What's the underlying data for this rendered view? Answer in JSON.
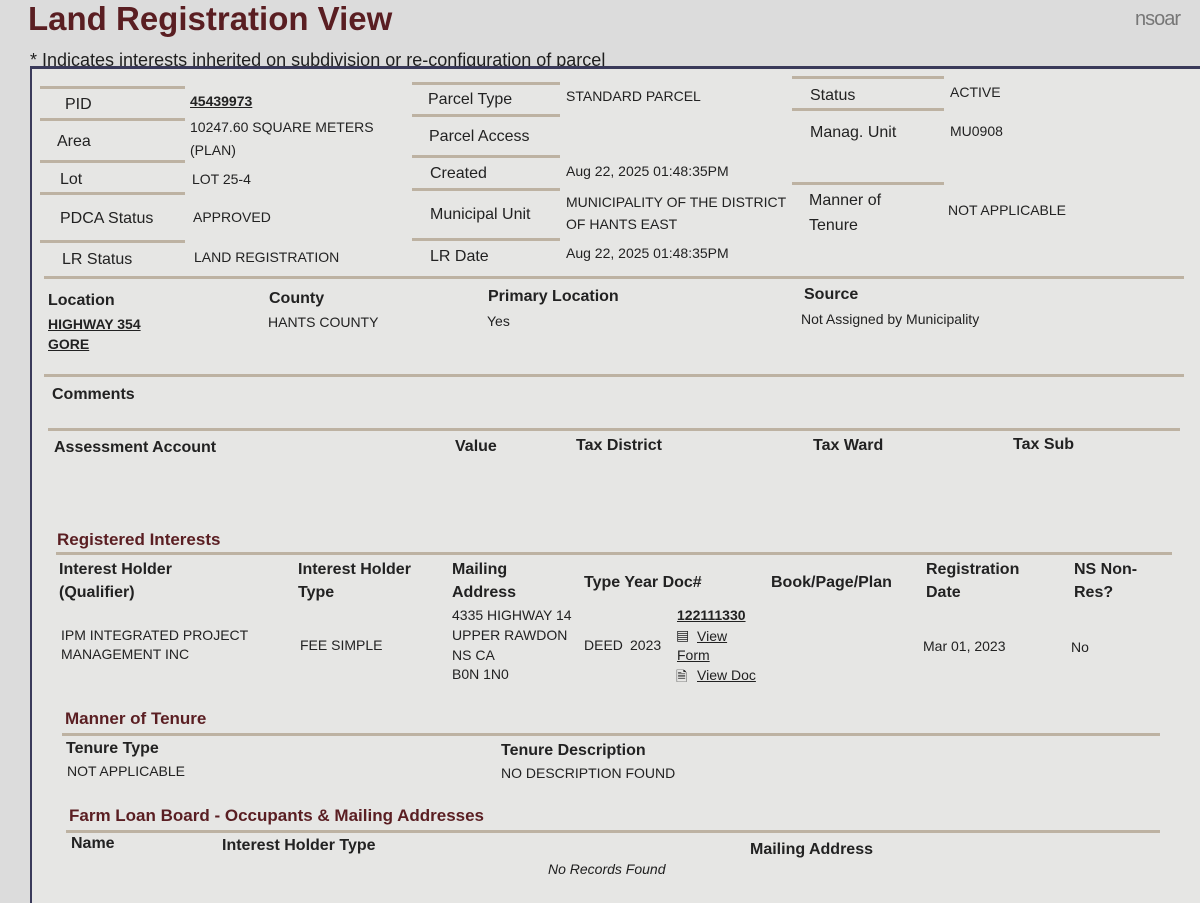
{
  "header": {
    "title": "Land Registration View",
    "note": "* Indicates interests inherited on subdivision or re-configuration of parcel",
    "logo": "nsoar"
  },
  "parcel": {
    "pid_label": "PID",
    "pid": "45439973",
    "area_label": "Area",
    "area": "10247.60 SQUARE METERS",
    "area_sub": "(PLAN)",
    "lot_label": "Lot",
    "lot": "LOT 25-4",
    "pdca_label": "PDCA Status",
    "pdca": "APPROVED",
    "lr_status_label": "LR Status",
    "lr_status": "LAND REGISTRATION",
    "type_label": "Parcel Type",
    "type": "STANDARD PARCEL",
    "access_label": "Parcel Access",
    "created_label": "Created",
    "created": "Aug 22, 2025 01:48:35PM",
    "muni_label": "Municipal Unit",
    "muni_1": "MUNICIPALITY OF THE DISTRICT",
    "muni_2": "OF HANTS EAST",
    "lr_date_label": "LR Date",
    "lr_date": "Aug 22, 2025 01:48:35PM",
    "status_label": "Status",
    "status": "ACTIVE",
    "manag_label": "Manag. Unit",
    "manag": "MU0908",
    "tenure_label_1": "Manner of",
    "tenure_label_2": "Tenure",
    "tenure": "NOT APPLICABLE"
  },
  "location": {
    "location_label": "Location",
    "location_1": "HIGHWAY 354",
    "location_2": "GORE",
    "county_label": "County",
    "county": "HANTS COUNTY",
    "primary_label": "Primary Location",
    "primary": "Yes",
    "source_label": "Source",
    "source": "Not Assigned by Municipality"
  },
  "comments_label": "Comments",
  "assessment": {
    "cols": [
      "Assessment Account",
      "Value",
      "Tax District",
      "Tax Ward",
      "Tax Sub"
    ]
  },
  "interests": {
    "title": "Registered Interests",
    "cols": {
      "holder_1": "Interest Holder",
      "holder_2": "(Qualifier)",
      "type_1": "Interest Holder",
      "type_2": "Type",
      "mail_1": "Mailing",
      "mail_2": "Address",
      "tyd": "Type Year Doc#",
      "bpp": "Book/Page/Plan",
      "reg_1": "Registration",
      "reg_2": "Date",
      "ns_1": "NS Non-",
      "ns_2": "Res?"
    },
    "row": {
      "holder_1": "IPM INTEGRATED PROJECT",
      "holder_2": "MANAGEMENT INC",
      "type": "FEE SIMPLE",
      "addr": [
        "4335 HIGHWAY 14",
        "UPPER RAWDON",
        "NS CA",
        "B0N 1N0"
      ],
      "doc_type": "DEED",
      "year": "2023",
      "doc": "122111330",
      "view_form_1": "View",
      "view_form_2": "Form",
      "view_doc": "View Doc",
      "reg_date": "Mar 01, 2023",
      "ns": "No"
    }
  },
  "manner": {
    "title": "Manner of Tenure",
    "type_label": "Tenure Type",
    "type": "NOT APPLICABLE",
    "desc_label": "Tenure Description",
    "desc": "NO DESCRIPTION FOUND"
  },
  "farm": {
    "title": "Farm Loan Board - Occupants & Mailing Addresses",
    "name": "Name",
    "type": "Interest Holder Type",
    "mail": "Mailing Address",
    "empty": "No Records Found"
  }
}
